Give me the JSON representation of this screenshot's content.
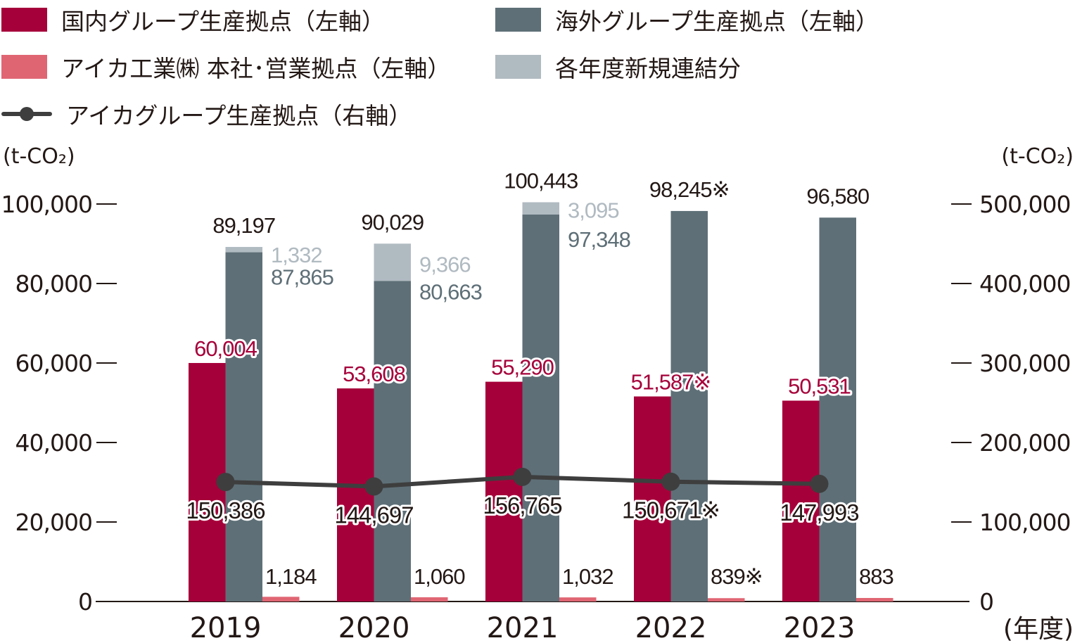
{
  "legend": [
    {
      "label": "国内グループ生産拠点（左軸）",
      "color": "#a6003a",
      "kind": "bar"
    },
    {
      "label": "海外グループ生産拠点（左軸）",
      "color": "#5e6f77",
      "kind": "bar"
    },
    {
      "label": "アイカ工業㈱ 本社･営業拠点（左軸）",
      "color": "#e06573",
      "kind": "bar"
    },
    {
      "label": "各年度新規連結分",
      "color": "#b0bac1",
      "kind": "bar"
    },
    {
      "label": "アイカグループ生産拠点（右軸）",
      "color": "#3e3e3e",
      "kind": "line"
    }
  ],
  "chart_data": {
    "type": "bar",
    "title": "",
    "categories": [
      "2019",
      "2020",
      "2021",
      "2022",
      "2023"
    ],
    "xlabel": "(年度)",
    "ylabel_left": "(t-CO₂)",
    "ylabel_right": "(t-CO₂)",
    "ylim_left": [
      0,
      100000
    ],
    "ylim_right": [
      0,
      500000
    ],
    "yticks_left": [
      "0",
      "20,000",
      "40,000",
      "60,000",
      "80,000",
      "100,000"
    ],
    "yticks_right": [
      "0",
      "100,000",
      "200,000",
      "300,000",
      "400,000",
      "500,000"
    ],
    "grid": false,
    "series": [
      {
        "name": "国内グループ生産拠点（左軸）",
        "axis": "left",
        "type": "bar",
        "values": [
          60004,
          53608,
          55290,
          51587,
          50531
        ],
        "labels": [
          "60,004",
          "53,608",
          "55,290",
          "51,587※",
          "50,531"
        ]
      },
      {
        "name": "海外グループ生産拠点（左軸）",
        "axis": "left",
        "type": "bar",
        "stack": "overseas",
        "values": [
          87865,
          80663,
          97348,
          98245,
          96580
        ],
        "labels": [
          "87,865",
          "80,663",
          "97,348",
          "",
          ""
        ]
      },
      {
        "name": "各年度新規連結分",
        "axis": "left",
        "type": "bar",
        "stack": "overseas",
        "values": [
          1332,
          9366,
          3095,
          0,
          0
        ],
        "labels": [
          "1,332",
          "9,366",
          "3,095",
          "",
          ""
        ]
      },
      {
        "name": "アイカ工業㈱ 本社･営業拠点（左軸）",
        "axis": "left",
        "type": "bar",
        "values": [
          1184,
          1060,
          1032,
          839,
          883
        ],
        "labels": [
          "1,184",
          "1,060",
          "1,032",
          "839※",
          "883"
        ]
      },
      {
        "name": "アイカグループ生産拠点（右軸）",
        "axis": "right",
        "type": "line",
        "values": [
          150386,
          144697,
          156765,
          150671,
          147993
        ],
        "labels": [
          "150,386",
          "144,697",
          "156,765",
          "150,671※",
          "147,993"
        ]
      }
    ],
    "overseas_totals": [
      "89,197",
      "90,029",
      "100,443",
      "98,245※",
      "96,580"
    ]
  }
}
